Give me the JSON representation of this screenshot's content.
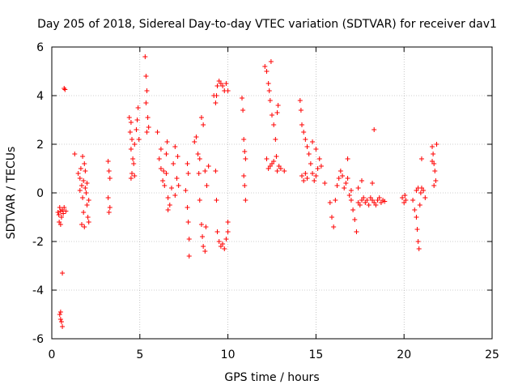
{
  "chart_data": {
    "type": "scatter",
    "title": "Day 205 of 2018, Sidereal Day-to-day VTEC variation (SDTVAR) for receiver dav1",
    "xlabel": "GPS time / hours",
    "ylabel": "SDTVAR / TECUs",
    "xlim": [
      0,
      25
    ],
    "ylim": [
      -6,
      6
    ],
    "xticks": [
      0,
      5,
      10,
      15,
      20,
      25
    ],
    "xtick_labels": [
      "0",
      "5",
      "10",
      "15",
      "20",
      "25"
    ],
    "yticks": [
      -6,
      -4,
      -2,
      0,
      2,
      4,
      6
    ],
    "ytick_labels": [
      "-6",
      "-4",
      "-2",
      "0",
      "2",
      "4",
      "6"
    ],
    "grid": true,
    "marker": "+",
    "color": "#ff0000",
    "series": [
      {
        "name": "SDTVAR",
        "points": [
          [
            0.35,
            -0.8
          ],
          [
            0.4,
            -0.9
          ],
          [
            0.45,
            -0.6
          ],
          [
            0.5,
            -0.75
          ],
          [
            0.55,
            -1.0
          ],
          [
            0.6,
            -0.7
          ],
          [
            0.65,
            -0.85
          ],
          [
            0.7,
            -0.6
          ],
          [
            0.8,
            -0.75
          ],
          [
            0.42,
            -1.2
          ],
          [
            0.5,
            -1.3
          ],
          [
            0.45,
            -5.0
          ],
          [
            0.5,
            -5.2
          ],
          [
            0.55,
            -5.3
          ],
          [
            0.6,
            -5.5
          ],
          [
            0.5,
            -4.9
          ],
          [
            0.6,
            -3.3
          ],
          [
            0.7,
            4.3
          ],
          [
            0.75,
            4.25
          ],
          [
            1.3,
            1.6
          ],
          [
            1.5,
            0.8
          ],
          [
            1.6,
            0.6
          ],
          [
            1.65,
            1.0
          ],
          [
            1.7,
            0.3
          ],
          [
            1.75,
            -0.2
          ],
          [
            1.8,
            0.5
          ],
          [
            1.85,
            1.2
          ],
          [
            1.9,
            0.9
          ],
          [
            1.95,
            0.0
          ],
          [
            2.0,
            -0.5
          ],
          [
            2.05,
            -1.0
          ],
          [
            1.8,
            -0.8
          ],
          [
            1.7,
            -1.3
          ],
          [
            1.85,
            -1.4
          ],
          [
            2.1,
            -1.2
          ],
          [
            1.9,
            0.2
          ],
          [
            2.0,
            0.4
          ],
          [
            2.1,
            -0.3
          ],
          [
            1.6,
            0.1
          ],
          [
            1.75,
            1.5
          ],
          [
            3.2,
            1.3
          ],
          [
            3.25,
            0.9
          ],
          [
            3.3,
            0.6
          ],
          [
            3.2,
            -0.2
          ],
          [
            3.3,
            -0.6
          ],
          [
            3.25,
            -0.8
          ],
          [
            4.4,
            3.1
          ],
          [
            4.45,
            2.5
          ],
          [
            4.5,
            2.9
          ],
          [
            4.55,
            2.2
          ],
          [
            4.5,
            1.8
          ],
          [
            4.6,
            1.4
          ],
          [
            4.65,
            1.2
          ],
          [
            4.7,
            2.0
          ],
          [
            4.8,
            2.6
          ],
          [
            4.9,
            3.5
          ],
          [
            4.85,
            3.0
          ],
          [
            4.95,
            2.2
          ],
          [
            4.5,
            0.6
          ],
          [
            4.55,
            0.8
          ],
          [
            4.7,
            0.7
          ],
          [
            5.3,
            5.6
          ],
          [
            5.35,
            4.8
          ],
          [
            5.4,
            4.2
          ],
          [
            5.35,
            3.7
          ],
          [
            5.45,
            3.1
          ],
          [
            5.4,
            2.5
          ],
          [
            5.5,
            2.7
          ],
          [
            6.0,
            2.5
          ],
          [
            6.1,
            1.4
          ],
          [
            6.2,
            1.0
          ],
          [
            6.3,
            0.5
          ],
          [
            6.35,
            0.9
          ],
          [
            6.4,
            0.3
          ],
          [
            6.5,
            0.8
          ],
          [
            6.6,
            -0.2
          ],
          [
            6.7,
            -0.5
          ],
          [
            6.8,
            0.2
          ],
          [
            6.9,
            1.2
          ],
          [
            7.0,
            1.9
          ],
          [
            7.1,
            0.6
          ],
          [
            7.0,
            -0.1
          ],
          [
            6.6,
            -0.7
          ],
          [
            6.5,
            1.6
          ],
          [
            6.2,
            1.8
          ],
          [
            6.55,
            2.1
          ],
          [
            7.15,
            1.5
          ],
          [
            7.2,
            0.3
          ],
          [
            7.6,
            0.1
          ],
          [
            7.7,
            -0.6
          ],
          [
            7.75,
            -1.2
          ],
          [
            7.8,
            -1.9
          ],
          [
            7.8,
            -2.6
          ],
          [
            7.7,
            1.2
          ],
          [
            7.75,
            0.8
          ],
          [
            8.1,
            2.1
          ],
          [
            8.2,
            2.3
          ],
          [
            8.3,
            1.6
          ],
          [
            8.35,
            0.8
          ],
          [
            8.4,
            -0.3
          ],
          [
            8.5,
            -1.3
          ],
          [
            8.55,
            -1.8
          ],
          [
            8.6,
            -2.2
          ],
          [
            8.7,
            -2.4
          ],
          [
            8.75,
            -1.4
          ],
          [
            8.5,
            3.1
          ],
          [
            8.6,
            2.8
          ],
          [
            8.7,
            0.9
          ],
          [
            8.8,
            0.3
          ],
          [
            8.4,
            1.4
          ],
          [
            8.9,
            1.1
          ],
          [
            9.2,
            4.0
          ],
          [
            9.3,
            3.7
          ],
          [
            9.4,
            4.4
          ],
          [
            9.5,
            4.6
          ],
          [
            9.6,
            4.5
          ],
          [
            9.7,
            4.4
          ],
          [
            9.8,
            4.2
          ],
          [
            9.9,
            4.5
          ],
          [
            10.0,
            4.2
          ],
          [
            9.35,
            4.0
          ],
          [
            9.3,
            0.9
          ],
          [
            9.35,
            -0.3
          ],
          [
            9.4,
            -1.6
          ],
          [
            9.5,
            -2.0
          ],
          [
            9.6,
            -2.2
          ],
          [
            9.7,
            -2.1
          ],
          [
            9.8,
            -2.3
          ],
          [
            9.9,
            -1.9
          ],
          [
            10.0,
            -1.6
          ],
          [
            10.0,
            -1.2
          ],
          [
            10.8,
            3.9
          ],
          [
            10.85,
            3.4
          ],
          [
            10.9,
            2.2
          ],
          [
            10.95,
            1.7
          ],
          [
            11.0,
            1.4
          ],
          [
            10.9,
            0.7
          ],
          [
            10.95,
            0.3
          ],
          [
            11.0,
            -0.3
          ],
          [
            12.1,
            5.2
          ],
          [
            12.2,
            5.0
          ],
          [
            12.3,
            4.5
          ],
          [
            12.35,
            4.2
          ],
          [
            12.4,
            3.8
          ],
          [
            12.5,
            3.2
          ],
          [
            12.6,
            2.8
          ],
          [
            12.7,
            2.2
          ],
          [
            12.75,
            1.5
          ],
          [
            12.8,
            0.9
          ],
          [
            12.2,
            1.4
          ],
          [
            12.3,
            1.0
          ],
          [
            12.4,
            1.1
          ],
          [
            12.5,
            1.2
          ],
          [
            12.6,
            1.3
          ],
          [
            12.9,
            1.1
          ],
          [
            13.0,
            1.0
          ],
          [
            12.45,
            5.4
          ],
          [
            12.8,
            3.3
          ],
          [
            12.85,
            3.6
          ],
          [
            13.2,
            0.9
          ],
          [
            14.1,
            3.8
          ],
          [
            14.15,
            3.4
          ],
          [
            14.2,
            2.8
          ],
          [
            14.3,
            2.5
          ],
          [
            14.4,
            2.2
          ],
          [
            14.5,
            1.9
          ],
          [
            14.6,
            1.6
          ],
          [
            14.7,
            1.2
          ],
          [
            14.8,
            0.8
          ],
          [
            14.9,
            0.5
          ],
          [
            15.0,
            0.7
          ],
          [
            15.1,
            1.0
          ],
          [
            15.2,
            1.4
          ],
          [
            15.3,
            1.1
          ],
          [
            14.2,
            0.7
          ],
          [
            14.3,
            0.5
          ],
          [
            14.4,
            0.8
          ],
          [
            14.5,
            0.6
          ],
          [
            14.8,
            2.1
          ],
          [
            15.0,
            1.8
          ],
          [
            15.5,
            0.4
          ],
          [
            15.8,
            -0.4
          ],
          [
            15.9,
            -1.0
          ],
          [
            16.0,
            -1.4
          ],
          [
            16.1,
            -0.3
          ],
          [
            16.2,
            0.3
          ],
          [
            16.3,
            0.6
          ],
          [
            16.4,
            0.9
          ],
          [
            16.5,
            0.7
          ],
          [
            16.6,
            0.2
          ],
          [
            16.7,
            0.4
          ],
          [
            16.8,
            0.6
          ],
          [
            16.9,
            -0.1
          ],
          [
            17.0,
            -0.3
          ],
          [
            17.1,
            -0.7
          ],
          [
            17.2,
            -1.1
          ],
          [
            17.3,
            -1.6
          ],
          [
            17.4,
            -0.4
          ],
          [
            17.5,
            -0.5
          ],
          [
            17.6,
            -0.3
          ],
          [
            17.7,
            -0.2
          ],
          [
            17.8,
            -0.4
          ],
          [
            17.9,
            -0.3
          ],
          [
            18.0,
            -0.5
          ],
          [
            18.1,
            -0.2
          ],
          [
            18.2,
            -0.3
          ],
          [
            18.3,
            -0.4
          ],
          [
            18.4,
            -0.5
          ],
          [
            18.5,
            -0.3
          ],
          [
            18.6,
            -0.2
          ],
          [
            18.7,
            -0.4
          ],
          [
            18.8,
            -0.3
          ],
          [
            18.9,
            -0.35
          ],
          [
            16.8,
            1.4
          ],
          [
            17.0,
            0.1
          ],
          [
            17.4,
            0.2
          ],
          [
            18.3,
            2.6
          ],
          [
            18.2,
            0.4
          ],
          [
            17.6,
            0.5
          ],
          [
            19.9,
            -0.2
          ],
          [
            20.0,
            -0.4
          ],
          [
            20.05,
            -0.1
          ],
          [
            20.1,
            -0.3
          ],
          [
            20.5,
            -0.3
          ],
          [
            20.6,
            -0.7
          ],
          [
            20.7,
            -1.0
          ],
          [
            20.75,
            -1.5
          ],
          [
            20.8,
            -2.0
          ],
          [
            20.85,
            -2.3
          ],
          [
            20.9,
            -0.5
          ],
          [
            20.95,
            0.0
          ],
          [
            21.0,
            0.2
          ],
          [
            21.1,
            0.1
          ],
          [
            21.2,
            -0.2
          ],
          [
            20.7,
            0.1
          ],
          [
            20.8,
            0.2
          ],
          [
            21.0,
            1.4
          ],
          [
            21.6,
            1.9
          ],
          [
            21.65,
            1.6
          ],
          [
            21.7,
            1.2
          ],
          [
            21.75,
            0.9
          ],
          [
            21.8,
            0.5
          ],
          [
            21.7,
            0.3
          ],
          [
            21.85,
            2.0
          ],
          [
            21.6,
            1.3
          ]
        ]
      }
    ]
  }
}
